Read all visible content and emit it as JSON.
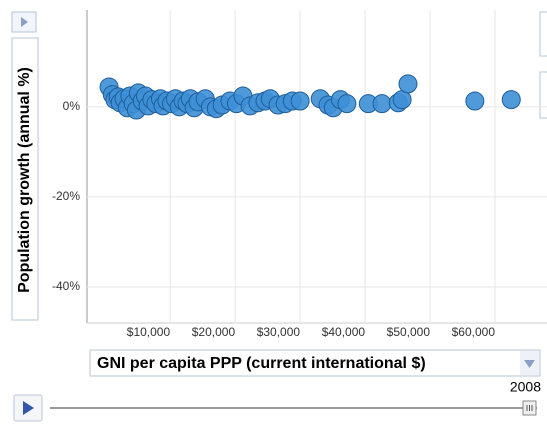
{
  "chart_data": {
    "type": "scatter",
    "xlabel": "GNI per capita PPP (current international $)",
    "ylabel": "Population growth (annual %)",
    "year": "2008",
    "xlim": [
      -2800,
      68000
    ],
    "ylim": [
      -48,
      21.5
    ],
    "xticks": [
      {
        "value": 10000,
        "label": "$10,000"
      },
      {
        "value": 20000,
        "label": "$20,000"
      },
      {
        "value": 30000,
        "label": "$30,000"
      },
      {
        "value": 40000,
        "label": "$40,000"
      },
      {
        "value": 50000,
        "label": "$50,000"
      },
      {
        "value": 60000,
        "label": "$60,000"
      }
    ],
    "yticks": [
      {
        "value": 0,
        "label": "0%"
      },
      {
        "value": -20,
        "label": "-20%"
      },
      {
        "value": -40,
        "label": "-40%"
      }
    ],
    "grid": true,
    "color": "#3d8fd6",
    "x": [
      600,
      1100,
      1500,
      2000,
      2300,
      2900,
      3400,
      3800,
      4300,
      4800,
      5100,
      5700,
      6200,
      6600,
      7200,
      7800,
      8500,
      8900,
      9500,
      10200,
      10800,
      11400,
      12000,
      12600,
      13100,
      13700,
      14300,
      15400,
      16200,
      17100,
      18000,
      19200,
      20200,
      21200,
      22300,
      23500,
      24600,
      25400,
      26600,
      27700,
      28800,
      30000,
      33100,
      34300,
      35100,
      36200,
      37200,
      40500,
      42600,
      45100,
      45700,
      46600,
      56900,
      62500
    ],
    "values": [
      4.4,
      2.7,
      1.6,
      2.2,
      0.9,
      1.8,
      -0.2,
      2.4,
      0.7,
      -0.7,
      3.1,
      1.3,
      2.4,
      0.2,
      1.6,
      0.7,
      1.8,
      0.2,
      1.3,
      0.7,
      1.8,
      0,
      1.3,
      0.7,
      1.8,
      -0.2,
      1.1,
      1.8,
      0,
      -0.4,
      0.4,
      1.3,
      0.7,
      2.4,
      0.2,
      0.9,
      1.3,
      1.8,
      0.4,
      0.7,
      1.3,
      1.3,
      1.8,
      0.4,
      -0.2,
      1.6,
      0.7,
      0.7,
      0.7,
      0.9,
      1.6,
      5.1,
      1.3,
      1.6
    ]
  }
}
